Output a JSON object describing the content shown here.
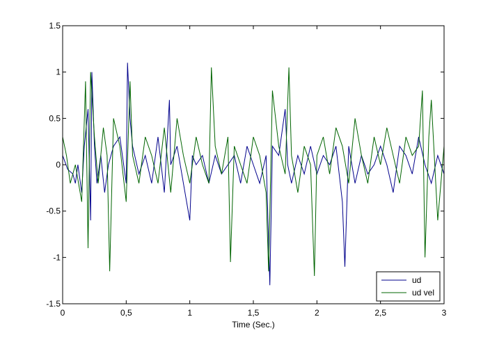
{
  "chart_data": {
    "type": "line",
    "xlabel": "Time (Sec.)",
    "ylabel": "",
    "xlim": [
      0,
      3
    ],
    "ylim": [
      -1.5,
      1.5
    ],
    "grid": false,
    "legend_position": "bottom-right",
    "x_ticks": [
      0,
      0.5,
      1,
      1.5,
      2,
      2.5,
      3
    ],
    "x_tick_labels": [
      "0",
      "0,5",
      "1",
      "1,5",
      "2",
      "2,5",
      "3"
    ],
    "y_ticks": [
      -1.5,
      -1,
      -0.5,
      0,
      0.5,
      1,
      1.5
    ],
    "y_tick_labels": [
      "-1.5",
      "-1",
      "-0.5",
      "0",
      "0.5",
      "1",
      "1.5"
    ],
    "series": [
      {
        "name": "ud",
        "color": "#00008b",
        "x": [
          0,
          0.04,
          0.08,
          0.1,
          0.12,
          0.15,
          0.17,
          0.2,
          0.22,
          0.23,
          0.25,
          0.27,
          0.3,
          0.33,
          0.36,
          0.4,
          0.45,
          0.5,
          0.51,
          0.53,
          0.55,
          0.6,
          0.65,
          0.7,
          0.75,
          0.8,
          0.84,
          0.85,
          0.9,
          0.95,
          1.0,
          1.02,
          1.05,
          1.1,
          1.15,
          1.2,
          1.25,
          1.3,
          1.35,
          1.4,
          1.45,
          1.5,
          1.55,
          1.6,
          1.63,
          1.65,
          1.7,
          1.75,
          1.77,
          1.8,
          1.85,
          1.9,
          1.95,
          2.0,
          2.05,
          2.1,
          2.15,
          2.2,
          2.22,
          2.25,
          2.3,
          2.35,
          2.4,
          2.45,
          2.5,
          2.55,
          2.6,
          2.65,
          2.7,
          2.75,
          2.8,
          2.85,
          2.9,
          2.95,
          3.0
        ],
        "y": [
          0.1,
          -0.05,
          -0.1,
          -0.2,
          0.0,
          -0.3,
          0.2,
          0.6,
          -0.6,
          1.0,
          0.2,
          -0.2,
          0.1,
          -0.3,
          0.0,
          0.2,
          0.3,
          -0.2,
          1.1,
          0.5,
          0.2,
          -0.1,
          0.1,
          -0.2,
          0.3,
          -0.3,
          0.7,
          0.0,
          0.2,
          -0.2,
          -0.6,
          0.1,
          0.0,
          0.1,
          -0.2,
          0.1,
          -0.1,
          0.0,
          0.1,
          -0.2,
          0.2,
          0.0,
          -0.2,
          0.1,
          -1.3,
          0.2,
          0.1,
          0.6,
          0.0,
          -0.2,
          0.1,
          -0.1,
          0.2,
          -0.1,
          0.1,
          0.0,
          0.2,
          -0.4,
          -1.1,
          0.2,
          -0.2,
          0.1,
          -0.1,
          0.0,
          0.2,
          0.0,
          -0.3,
          0.2,
          0.1,
          -0.1,
          0.3,
          0.0,
          -0.2,
          0.1,
          -0.1
        ]
      },
      {
        "name": "ud vel",
        "color": "#006400",
        "x": [
          0,
          0.03,
          0.06,
          0.1,
          0.15,
          0.18,
          0.2,
          0.22,
          0.25,
          0.28,
          0.32,
          0.35,
          0.37,
          0.4,
          0.45,
          0.5,
          0.53,
          0.55,
          0.6,
          0.65,
          0.7,
          0.75,
          0.8,
          0.85,
          0.9,
          0.95,
          1.0,
          1.05,
          1.1,
          1.15,
          1.17,
          1.2,
          1.25,
          1.3,
          1.32,
          1.35,
          1.4,
          1.45,
          1.5,
          1.55,
          1.6,
          1.62,
          1.65,
          1.7,
          1.75,
          1.78,
          1.8,
          1.85,
          1.9,
          1.95,
          1.98,
          2.0,
          2.05,
          2.1,
          2.15,
          2.2,
          2.25,
          2.3,
          2.35,
          2.4,
          2.45,
          2.5,
          2.55,
          2.6,
          2.65,
          2.7,
          2.75,
          2.8,
          2.83,
          2.85,
          2.88,
          2.9,
          2.95,
          3.0
        ],
        "y": [
          0.3,
          0.1,
          -0.2,
          0.0,
          -0.4,
          0.9,
          -0.9,
          1.0,
          0.3,
          -0.2,
          0.4,
          0.1,
          -1.15,
          0.5,
          0.2,
          -0.4,
          0.9,
          0.1,
          -0.2,
          0.3,
          0.1,
          -0.2,
          0.4,
          -0.3,
          0.5,
          0.1,
          -0.2,
          0.3,
          0.0,
          -0.2,
          1.05,
          0.2,
          -0.1,
          0.3,
          -1.05,
          0.2,
          0.0,
          -0.2,
          0.3,
          0.1,
          -0.3,
          -1.15,
          0.8,
          0.2,
          -0.1,
          1.05,
          0.1,
          -0.3,
          0.2,
          0.0,
          -1.2,
          0.1,
          0.3,
          -0.1,
          0.4,
          0.2,
          -0.2,
          0.5,
          0.1,
          -0.2,
          0.3,
          0.0,
          0.4,
          0.1,
          -0.2,
          0.3,
          0.1,
          0.2,
          0.8,
          -1.0,
          0.3,
          0.7,
          -0.6,
          0.2
        ]
      }
    ]
  }
}
